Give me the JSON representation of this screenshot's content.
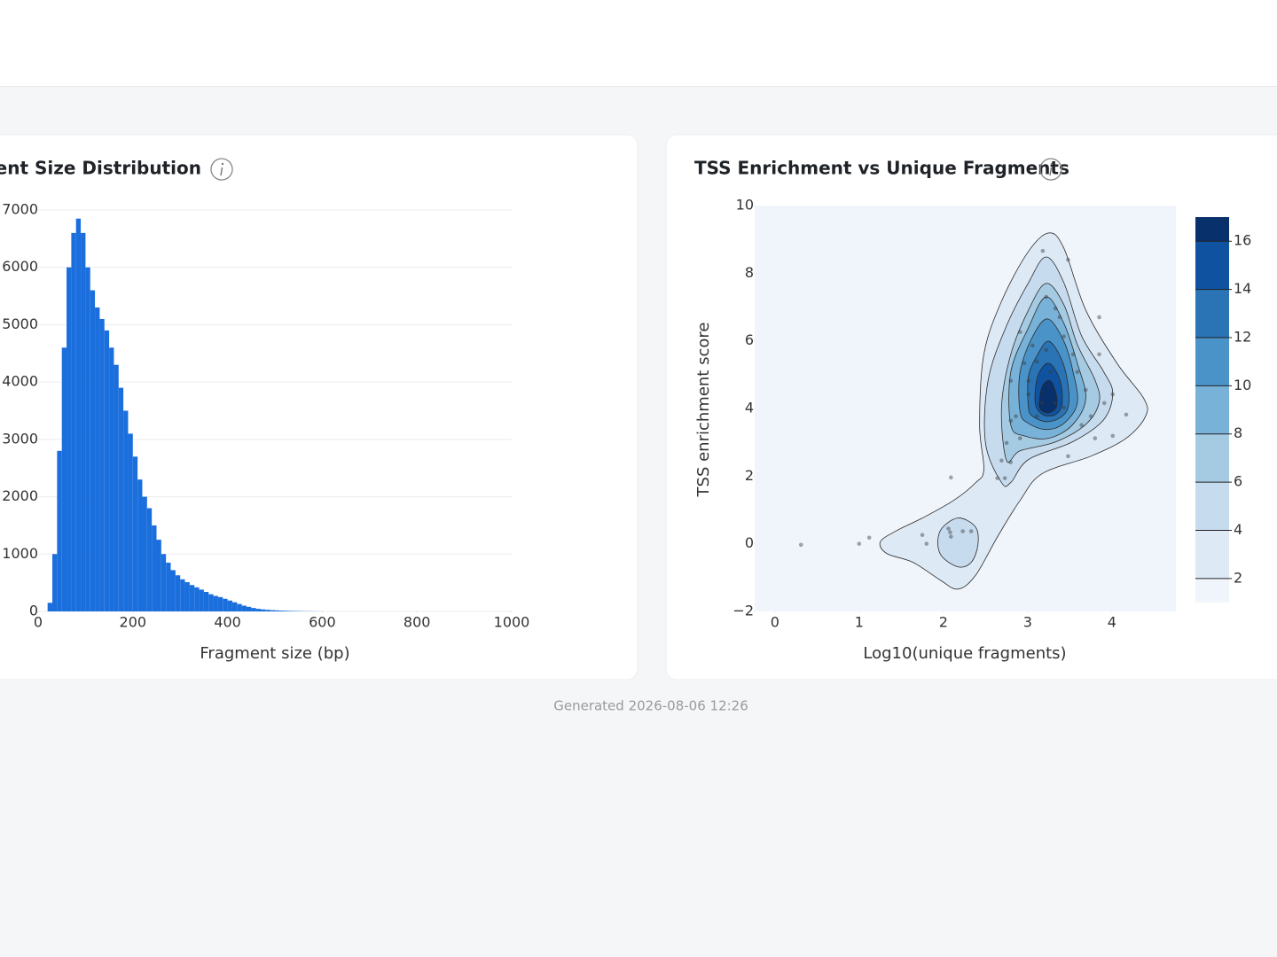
{
  "chart_data": [
    {
      "type": "histogram",
      "title": "Fragment Size Distribution",
      "xlabel": "Fragment size (bp)",
      "bins": [
        0,
        10,
        20,
        30,
        40,
        50,
        60,
        70,
        80,
        90,
        100,
        110,
        120,
        130,
        140,
        150,
        160,
        170,
        180,
        190,
        200,
        210,
        220,
        230,
        240,
        250,
        260,
        270,
        280,
        290,
        300,
        310,
        320,
        330,
        340,
        350,
        360,
        370,
        380,
        390,
        400,
        410,
        420,
        430,
        440,
        450,
        460,
        470,
        480,
        490,
        500,
        510,
        520,
        530,
        540,
        550,
        560,
        570,
        580,
        590,
        600
      ],
      "counts": [
        0,
        0,
        150,
        1000,
        2800,
        4600,
        6000,
        6600,
        6850,
        6600,
        6000,
        5600,
        5300,
        5100,
        4900,
        4600,
        4300,
        3900,
        3500,
        3100,
        2700,
        2300,
        2000,
        1800,
        1500,
        1250,
        1000,
        850,
        720,
        630,
        560,
        510,
        460,
        420,
        380,
        340,
        300,
        270,
        250,
        220,
        190,
        160,
        130,
        100,
        80,
        60,
        45,
        35,
        28,
        22,
        18,
        14,
        11,
        9,
        7,
        5,
        4,
        3,
        2,
        1
      ],
      "color": "#1b6fdd",
      "xlim": [
        0,
        1000
      ],
      "ylim": [
        0,
        7000
      ],
      "xticks": [
        0,
        200,
        400,
        600,
        800,
        1000
      ],
      "yticks": [
        0,
        1000,
        2000,
        3000,
        4000,
        5000,
        6000,
        7000
      ],
      "grid": true
    },
    {
      "type": "density_contour",
      "title": "TSS Enrichment vs Unique Fragments",
      "xlabel": "Log10(unique fragments)",
      "ylabel": "TSS enrichment score",
      "x": [
        0.31,
        1.0,
        1.12,
        2.09,
        1.75,
        1.8,
        2.06,
        2.08,
        2.09,
        2.23,
        2.33,
        3.18,
        3.48,
        3.85,
        3.22,
        3.33,
        3.38,
        3.43,
        2.91,
        3.06,
        3.22,
        3.11,
        2.96,
        3.54,
        3.59,
        3.01,
        3.27,
        2.8,
        2.86,
        2.8,
        2.91,
        2.75,
        2.69,
        2.8,
        2.64,
        2.73,
        3.43,
        3.64,
        3.75,
        3.91,
        4.01,
        3.85,
        3.8,
        4.01,
        4.17,
        3.48,
        3.69,
        3.33,
        3.11,
        3.17,
        3.01
      ],
      "y": [
        -0.03,
        0,
        0.18,
        1.96,
        0.26,
        0,
        0.45,
        0.34,
        0.21,
        0.37,
        0.37,
        8.66,
        8.4,
        6.7,
        7.3,
        6.96,
        6.7,
        6.13,
        6.26,
        5.86,
        5.73,
        5.39,
        5.34,
        5.6,
        5.08,
        4.82,
        5.08,
        4.82,
        3.77,
        3.64,
        3.12,
        2.98,
        2.46,
        2.41,
        1.94,
        1.94,
        4.03,
        3.51,
        3.77,
        4.16,
        4.42,
        5.6,
        3.12,
        3.19,
        3.82,
        2.59,
        4.55,
        4.16,
        3.77,
        4.16,
        4.42
      ],
      "point_color": "rgba(60,60,60,0.45)",
      "contours": [
        {
          "level": 2,
          "x": [
            1.25,
            1.43,
            1.75,
            2.12,
            2.38,
            2.48,
            2.43,
            2.48,
            2.69,
            3.0,
            3.25,
            3.43,
            3.69,
            4.06,
            4.38,
            4.4,
            4.17,
            3.75,
            3.17,
            2.91,
            2.65,
            2.38,
            2.17,
            1.96,
            1.64,
            1.33
          ],
          "y": [
            0.05,
            0.37,
            0.76,
            1.28,
            1.8,
            2.2,
            3.51,
            5.6,
            7.17,
            8.61,
            9.19,
            8.74,
            6.91,
            5.34,
            4.29,
            3.77,
            3.12,
            2.59,
            2.07,
            1.28,
            0.24,
            -0.94,
            -1.34,
            -1.07,
            -0.55,
            -0.29
          ]
        },
        {
          "level": 4,
          "x": [
            2.69,
            2.5,
            2.53,
            2.74,
            3.01,
            3.22,
            3.43,
            3.64,
            3.9,
            4.01,
            3.9,
            3.53,
            3.01,
            2.8
          ],
          "y": [
            1.81,
            2.98,
            4.82,
            6.39,
            7.72,
            8.48,
            7.72,
            6.15,
            5.1,
            4.45,
            3.66,
            3.01,
            2.49,
            1.81
          ]
        },
        {
          "level": 4,
          "x": [
            1.96,
            2.17,
            2.38,
            2.41,
            2.33,
            2.17,
            1.96
          ],
          "y": [
            0.37,
            0.76,
            0.5,
            -0.03,
            -0.55,
            -0.68,
            -0.29
          ]
        },
        {
          "level": 6,
          "x": [
            2.75,
            2.69,
            2.8,
            3.01,
            3.22,
            3.43,
            3.59,
            3.8,
            3.85,
            3.69,
            3.33,
            2.91
          ],
          "y": [
            2.46,
            4.03,
            5.6,
            6.91,
            7.7,
            7.07,
            5.89,
            4.84,
            4.19,
            3.53,
            3.01,
            2.75
          ]
        },
        {
          "level": 8,
          "x": [
            2.8,
            2.8,
            3.01,
            3.22,
            3.43,
            3.59,
            3.69,
            3.53,
            3.25,
            2.96
          ],
          "y": [
            3.51,
            5.08,
            6.39,
            7.3,
            6.52,
            5.34,
            4.29,
            3.51,
            3.12,
            3.19
          ]
        },
        {
          "level": 10,
          "x": [
            2.91,
            2.91,
            3.06,
            3.24,
            3.43,
            3.54,
            3.59,
            3.43,
            3.22,
            3.01
          ],
          "y": [
            3.9,
            5.08,
            6.13,
            6.65,
            5.99,
            5.08,
            4.16,
            3.56,
            3.38,
            3.56
          ]
        },
        {
          "level": 12,
          "x": [
            3.01,
            3.01,
            3.12,
            3.25,
            3.4,
            3.48,
            3.48,
            3.38,
            3.22,
            3.06
          ],
          "y": [
            4.03,
            4.95,
            5.6,
            5.99,
            5.47,
            4.69,
            4.03,
            3.72,
            3.61,
            3.77
          ]
        },
        {
          "level": 14,
          "x": [
            3.09,
            3.12,
            3.25,
            3.38,
            3.41,
            3.33,
            3.18
          ],
          "y": [
            4.16,
            4.95,
            5.34,
            4.87,
            4.16,
            3.82,
            3.82
          ]
        },
        {
          "level": 16,
          "x": [
            3.14,
            3.18,
            3.27,
            3.34,
            3.34,
            3.24,
            3.15
          ],
          "y": [
            4.24,
            4.69,
            4.82,
            4.42,
            4.03,
            3.87,
            3.98
          ]
        }
      ],
      "colorbar": {
        "lim": [
          1,
          17
        ],
        "ticks": [
          2,
          4,
          6,
          8,
          10,
          12,
          14,
          16
        ],
        "colors": [
          "#f0f5fb",
          "#dde9f5",
          "#c7dbef",
          "#a5cbe3",
          "#78b2d8",
          "#4a93c8",
          "#2a73b5",
          "#0f53a0",
          "#08306b"
        ]
      },
      "xlim": [
        -0.24,
        4.76
      ],
      "ylim": [
        -2,
        10
      ],
      "xticks": [
        0,
        1,
        2,
        3,
        4
      ],
      "yticks": [
        {
          "value": -2,
          "label": "−2"
        },
        0,
        2,
        4,
        6,
        8,
        10
      ]
    }
  ],
  "footer": "Generated 2026-08-06 12:26"
}
